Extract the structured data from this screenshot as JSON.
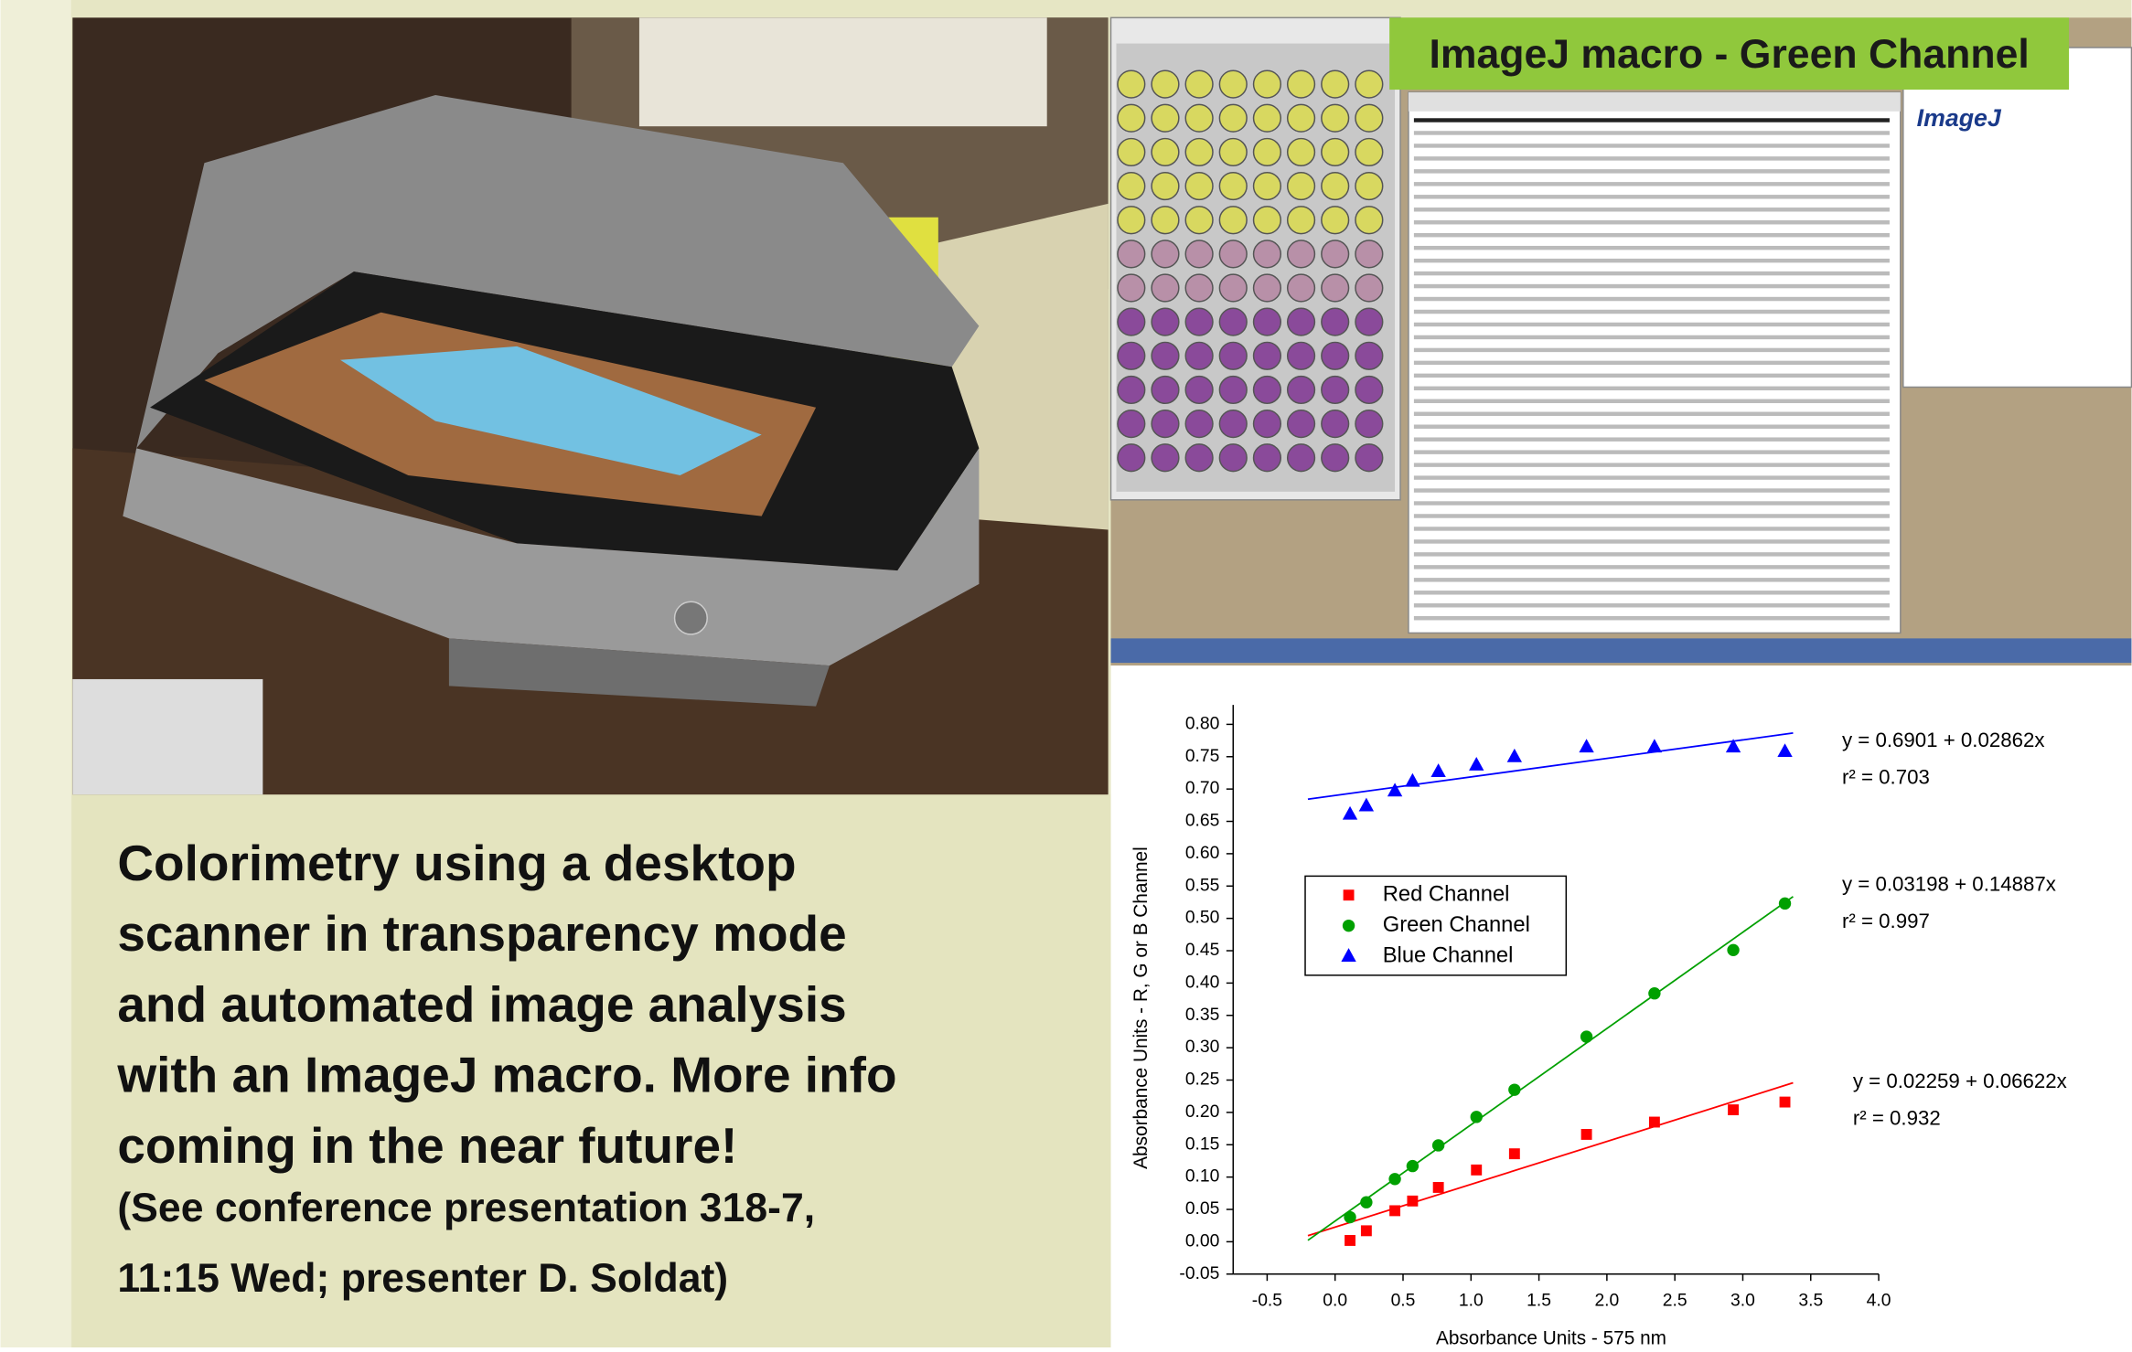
{
  "slide": {
    "banner": "ImageJ macro - Green Channel",
    "logo": "ImageJ",
    "caption": [
      "Colorimetry using a desktop",
      "scanner in transparency mode",
      "and automated image analysis",
      "with an ImageJ macro. More info",
      "coming in the near future!"
    ],
    "note": [
      "(See conference presentation 318-7,",
      "11:15 Wed; presenter D. Soldat)"
    ]
  },
  "chart_data": {
    "type": "scatter",
    "x_label": "Absorbance Units - 575 nm",
    "y_label": "Absorbance Units - R, G or B Channel",
    "xlim": [
      -0.75,
      4.0
    ],
    "ylim": [
      -0.05,
      0.83
    ],
    "xticks": [
      -0.5,
      {
        "value": 0,
        "label": "0.0"
      },
      0.5,
      {
        "value": 1,
        "label": "1.0"
      },
      1.5,
      {
        "value": 2,
        "label": "2.0"
      },
      2.5,
      {
        "value": 3,
        "label": "3.0"
      },
      3.5,
      {
        "value": 4,
        "label": "4.0"
      }
    ],
    "yticks": [
      -0.05,
      {
        "value": 0,
        "label": "0.00"
      },
      0.05,
      {
        "value": 0.1,
        "label": "0.10"
      },
      0.15,
      {
        "value": 0.2,
        "label": "0.20"
      },
      0.25,
      {
        "value": 0.3,
        "label": "0.30"
      },
      0.35,
      {
        "value": 0.4,
        "label": "0.40"
      },
      0.45,
      {
        "value": 0.5,
        "label": "0.50"
      },
      0.55,
      {
        "value": 0.6,
        "label": "0.60"
      },
      0.65,
      {
        "value": 0.7,
        "label": "0.70"
      },
      0.75,
      {
        "value": 0.8,
        "label": "0.80"
      }
    ],
    "x": [
      0.11,
      0.23,
      0.44,
      0.57,
      0.76,
      1.04,
      1.32,
      1.85,
      2.35,
      2.93,
      3.31
    ],
    "series": [
      {
        "name": "Red Channel",
        "color": "#ff0000",
        "marker": "square",
        "values": [
          0.002,
          0.017,
          0.048,
          0.063,
          0.084,
          0.111,
          0.136,
          0.166,
          0.185,
          0.204,
          0.216
        ],
        "equation": "y = 0.02259 + 0.06622x",
        "r2": "r² = 0.932"
      },
      {
        "name": "Green Channel",
        "color": "#00a000",
        "marker": "circle",
        "values": [
          0.038,
          0.061,
          0.097,
          0.117,
          0.149,
          0.193,
          0.235,
          0.317,
          0.384,
          0.451,
          0.523
        ],
        "equation": "y = 0.03198 + 0.14887x",
        "r2": "r² = 0.997"
      },
      {
        "name": "Blue Channel",
        "color": "#0000ff",
        "marker": "triangle",
        "values": [
          0.661,
          0.674,
          0.697,
          0.712,
          0.727,
          0.737,
          0.75,
          0.765,
          0.765,
          0.765,
          0.758
        ],
        "equation": "y = 0.6901 + 0.02862x",
        "r2": "r² = 0.703"
      }
    ]
  }
}
